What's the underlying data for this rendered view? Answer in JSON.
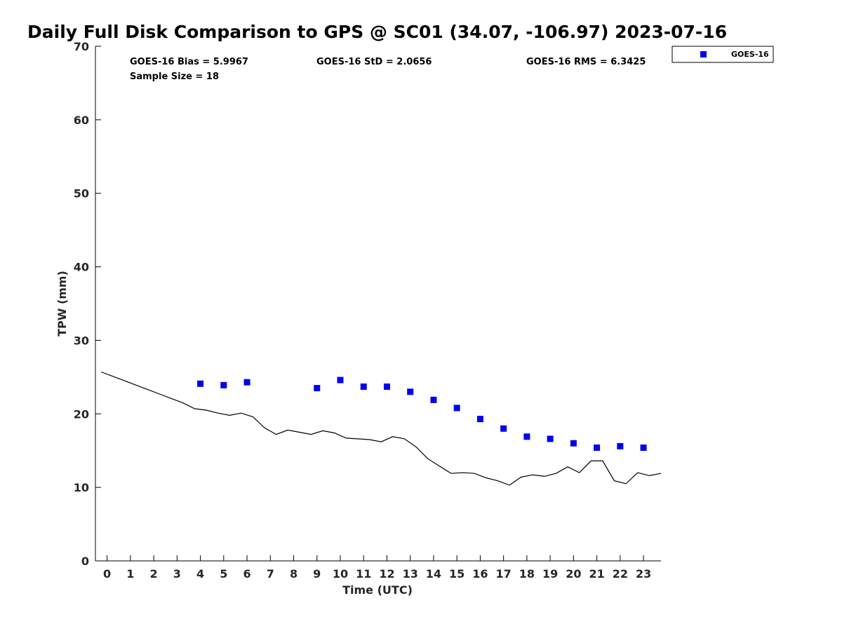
{
  "chart_data": {
    "type": "scatter",
    "title": "Daily Full Disk Comparison to GPS @ SC01 (34.07, -106.97) 2023-07-16",
    "xlabel": "Time (UTC)",
    "ylabel": "TPW (mm)",
    "xlim": [
      -0.5,
      23.75
    ],
    "ylim": [
      0,
      70
    ],
    "x_ticks": [
      0,
      1,
      2,
      3,
      4,
      5,
      6,
      7,
      8,
      9,
      10,
      11,
      12,
      13,
      14,
      15,
      16,
      17,
      18,
      19,
      20,
      21,
      22,
      23
    ],
    "y_ticks": [
      0,
      10,
      20,
      30,
      40,
      50,
      60,
      70
    ],
    "grid": false,
    "legend_position": "top-right",
    "stats": {
      "bias": "GOES-16 Bias = 5.9967",
      "std": "GOES-16 StD = 2.0656",
      "rms": "GOES-16 RMS = 6.3425",
      "sample": "Sample Size = 18"
    },
    "series": [
      {
        "name": "GOES-16",
        "kind": "scatter",
        "marker": "square",
        "color": "#0000ee",
        "x": [
          4,
          5,
          6,
          9,
          10,
          11,
          12,
          13,
          14,
          15,
          16,
          17,
          18,
          19,
          20,
          21,
          22,
          23
        ],
        "y": [
          24.1,
          23.9,
          24.3,
          23.5,
          24.6,
          23.7,
          23.7,
          23.0,
          21.9,
          20.8,
          19.3,
          18.0,
          16.9,
          16.6,
          16.0,
          15.4,
          15.6,
          15.4
        ]
      },
      {
        "kind": "line",
        "color": "#000000",
        "x": [
          -0.25,
          0.25,
          0.75,
          1.25,
          1.75,
          2.25,
          2.75,
          3.25,
          3.75,
          4.25,
          4.75,
          5.25,
          5.75,
          6.25,
          6.75,
          7.25,
          7.75,
          8.25,
          8.75,
          9.25,
          9.75,
          10.25,
          10.75,
          11.25,
          11.75,
          12.25,
          12.75,
          13.25,
          13.75,
          14.25,
          14.75,
          15.25,
          15.75,
          16.25,
          16.75,
          17.25,
          17.75,
          18.25,
          18.75,
          19.25,
          19.75,
          20.25,
          20.75,
          21.25,
          21.75,
          22.25,
          22.75,
          23.25,
          23.75
        ],
        "y": [
          25.7,
          25.1,
          24.5,
          23.9,
          23.3,
          22.7,
          22.1,
          21.5,
          20.7,
          20.5,
          20.1,
          19.8,
          20.1,
          19.6,
          18.1,
          17.2,
          17.8,
          17.5,
          17.2,
          17.7,
          17.4,
          16.7,
          16.6,
          16.5,
          16.2,
          16.9,
          16.6,
          15.5,
          13.9,
          12.9,
          11.9,
          12.0,
          11.9,
          11.3,
          10.9,
          10.3,
          11.4,
          11.7,
          11.5,
          11.9,
          12.8,
          12.0,
          13.6,
          13.6,
          10.9,
          10.5,
          12.0,
          11.6,
          11.9
        ]
      }
    ]
  }
}
